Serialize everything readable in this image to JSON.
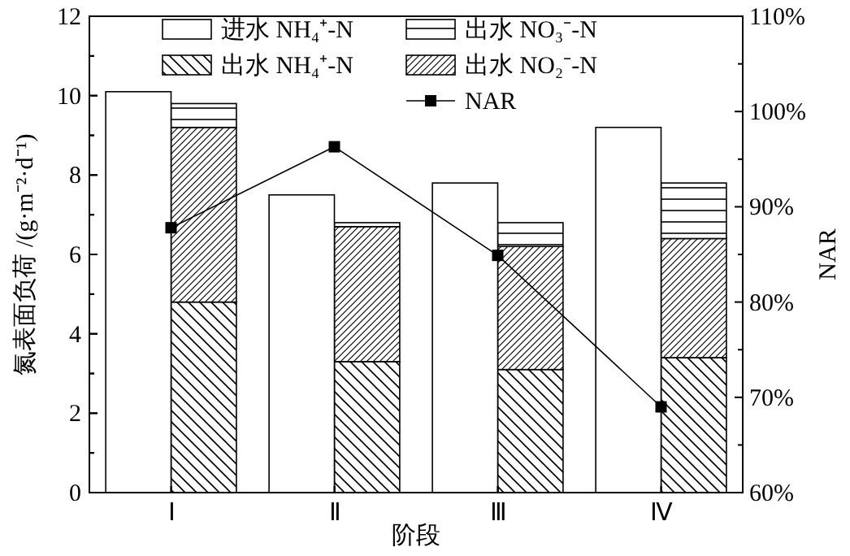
{
  "chart_data": [
    {
      "type": "bar",
      "xlabel": "阶段",
      "ylabel": "氮表面负荷 /(g·m⁻²·d⁻¹)",
      "y2label": "NAR",
      "categories": [
        "Ⅰ",
        "Ⅱ",
        "Ⅲ",
        "Ⅳ"
      ],
      "series": [
        {
          "name": "进水 NH₄⁺-N",
          "color": "#ffffff",
          "values": [
            10.1,
            7.5,
            7.8,
            9.2
          ]
        },
        {
          "name": "NAR",
          "type": "line",
          "axis": "y2",
          "color": "#000000",
          "marker": "square",
          "values": [
            87.8,
            96.3,
            84.9,
            69.0
          ]
        }
      ],
      "ylim": [
        0,
        12
      ],
      "yticks": [
        0,
        {
          "value": 1,
          "label": null
        },
        2,
        {
          "value": 3,
          "label": null
        },
        4,
        {
          "value": 5,
          "label": null
        },
        6,
        {
          "value": 7,
          "label": null
        },
        8,
        {
          "value": 9,
          "label": null
        },
        10,
        {
          "value": 11,
          "label": null
        },
        12
      ],
      "y2lim": [
        60,
        110
      ],
      "y2ticks": [
        {
          "value": 60,
          "label": "60%"
        },
        {
          "value": 65,
          "label": null
        },
        {
          "value": 70,
          "label": "70%"
        },
        {
          "value": 75,
          "label": null
        },
        {
          "value": 80,
          "label": "80%"
        },
        {
          "value": 85,
          "label": null
        },
        {
          "value": 90,
          "label": "90%"
        },
        {
          "value": 95,
          "label": null
        },
        {
          "value": 100,
          "label": "100%"
        },
        {
          "value": 105,
          "label": null
        },
        {
          "value": 110,
          "label": "110%"
        }
      ],
      "legend": "top"
    },
    {
      "type": "bar",
      "stacked": true,
      "tick_labels": false,
      "categories": [
        null,
        null,
        null,
        null
      ],
      "series": [
        {
          "name": "出水 NH₄⁺-N",
          "color": "#000000",
          "values": [
            4.8,
            3.3,
            3.1,
            3.4
          ]
        },
        {
          "name": "出水 NO₂⁻-N",
          "color": "#000000",
          "values": [
            4.4,
            3.4,
            3.1,
            3.0
          ]
        },
        {
          "name": "出水 NO₃⁻-N",
          "color": "#000000",
          "values": [
            0.6,
            0.1,
            0.6,
            1.4
          ]
        }
      ],
      "ylim": [
        0,
        12
      ],
      "yticks": [
        0,
        {
          "value": 1,
          "label": null
        },
        2,
        {
          "value": 3,
          "label": null
        },
        4,
        {
          "value": 5,
          "label": null
        },
        6,
        {
          "value": 7,
          "label": null
        },
        8,
        {
          "value": 9,
          "label": null
        },
        10,
        {
          "value": 11,
          "label": null
        },
        12
      ],
      "legend": "top"
    }
  ]
}
